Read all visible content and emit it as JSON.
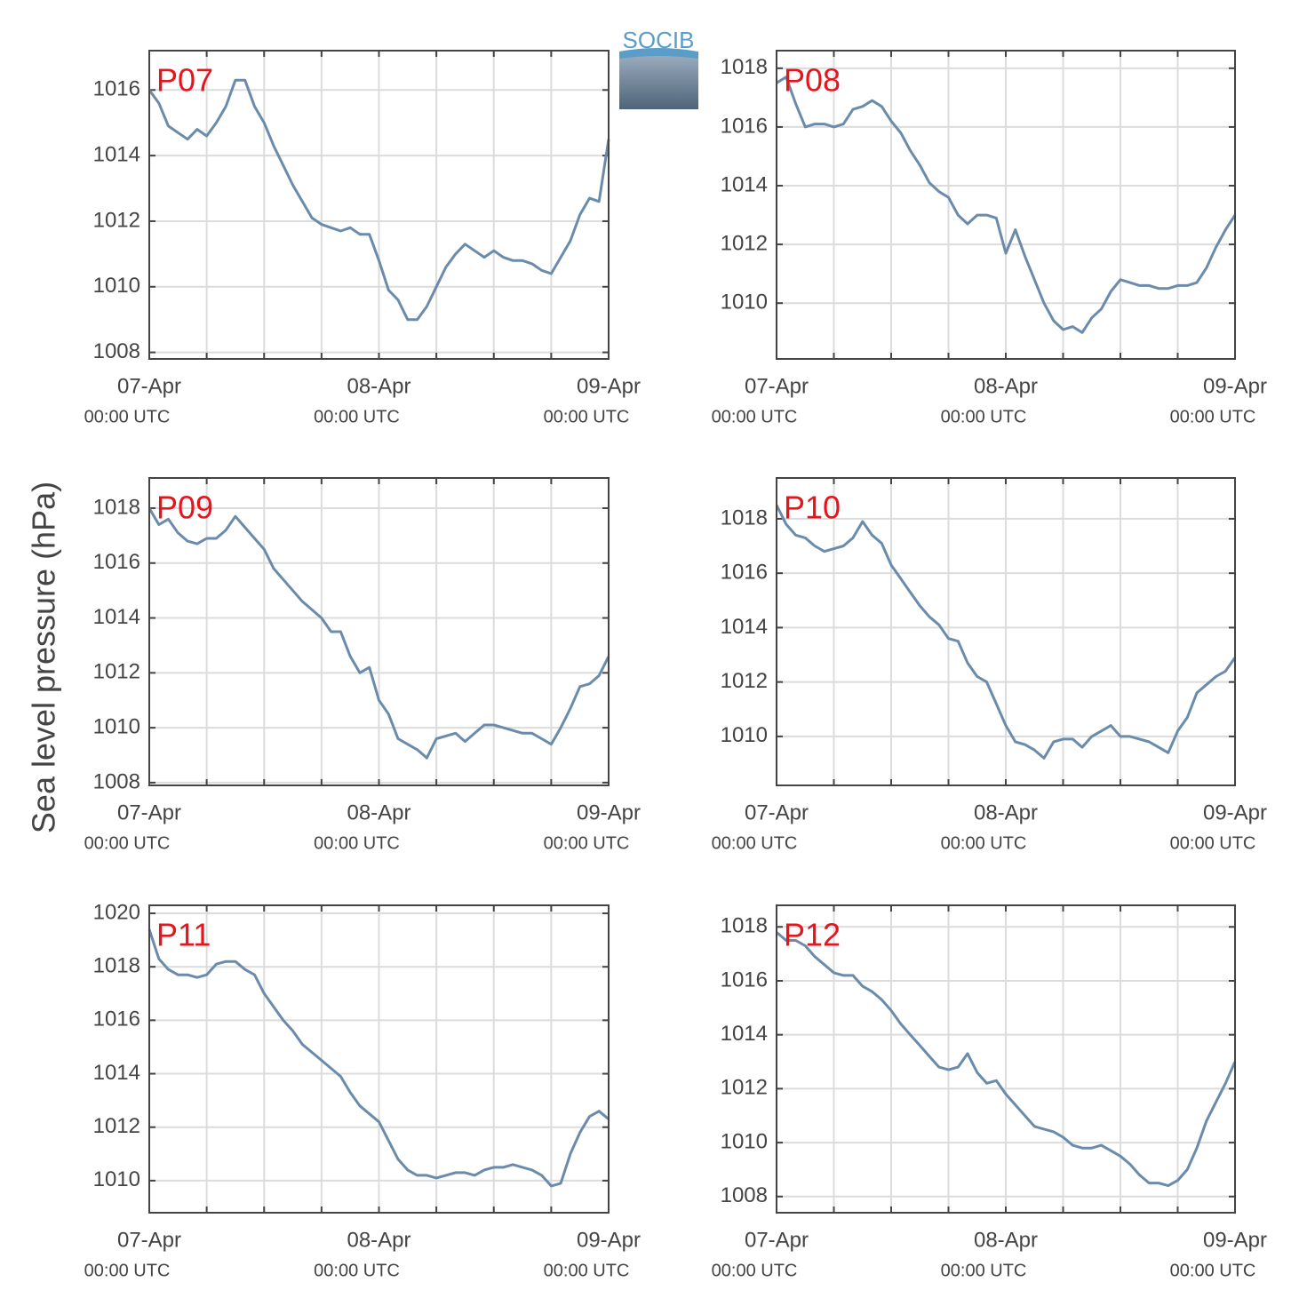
{
  "logo": "SOCIB",
  "ylabel": "Sea level pressure (hPa)",
  "chart_data": [
    {
      "type": "line",
      "title": "P07",
      "color": "#6a8bab",
      "grid": true,
      "x": [
        0,
        1,
        2,
        3,
        4,
        5,
        6,
        7,
        8,
        9,
        10,
        11,
        12,
        13,
        14,
        15,
        16,
        17,
        18,
        19,
        20,
        21,
        22,
        23,
        24,
        25,
        26,
        27,
        28,
        29,
        30,
        31,
        32,
        33,
        34,
        35,
        36,
        37,
        38,
        39,
        40,
        41,
        42,
        43,
        44,
        45,
        46,
        47,
        48
      ],
      "values": [
        1016,
        1015.6,
        1014.9,
        1014.7,
        1014.5,
        1014.8,
        1014.6,
        1015.0,
        1015.5,
        1016.3,
        1016.3,
        1015.5,
        1015.0,
        1014.3,
        1013.7,
        1013.1,
        1012.6,
        1012.1,
        1011.9,
        1011.8,
        1011.7,
        1011.8,
        1011.6,
        1011.6,
        1010.8,
        1009.9,
        1009.6,
        1009.0,
        1009.0,
        1009.4,
        1010.0,
        1010.6,
        1011.0,
        1011.3,
        1011.1,
        1010.9,
        1011.1,
        1010.9,
        1010.8,
        1010.8,
        1010.7,
        1010.5,
        1010.4,
        1010.9,
        1011.4,
        1012.2,
        1012.7,
        1012.6,
        1014.5
      ],
      "xlim": [
        0,
        48
      ],
      "xticks": [
        {
          "value": 0,
          "label": "07-Apr",
          "sublabel": "00:00 UTC"
        },
        {
          "value": 6
        },
        {
          "value": 12
        },
        {
          "value": 18
        },
        {
          "value": 24,
          "label": "08-Apr",
          "sublabel": "00:00 UTC"
        },
        {
          "value": 30
        },
        {
          "value": 36
        },
        {
          "value": 42
        },
        {
          "value": 48,
          "label": "09-Apr",
          "sublabel": "00:00 UTC"
        }
      ],
      "ylim": [
        1007.8,
        1017.2
      ],
      "yticks": [
        1008,
        1010,
        1012,
        1014,
        1016
      ]
    },
    {
      "type": "line",
      "title": "P08",
      "color": "#6a8bab",
      "grid": true,
      "x": [
        0,
        1,
        2,
        3,
        4,
        5,
        6,
        7,
        8,
        9,
        10,
        11,
        12,
        13,
        14,
        15,
        16,
        17,
        18,
        19,
        20,
        21,
        22,
        23,
        24,
        25,
        26,
        27,
        28,
        29,
        30,
        31,
        32,
        33,
        34,
        35,
        36,
        37,
        38,
        39,
        40,
        41,
        42,
        43,
        44,
        45,
        46,
        47,
        48
      ],
      "values": [
        1017.5,
        1017.7,
        1016.8,
        1016.0,
        1016.1,
        1016.1,
        1016.0,
        1016.1,
        1016.6,
        1016.7,
        1016.9,
        1016.7,
        1016.2,
        1015.8,
        1015.2,
        1014.7,
        1014.1,
        1013.8,
        1013.6,
        1013.0,
        1012.7,
        1013.0,
        1013.0,
        1012.9,
        1011.7,
        1012.5,
        1011.6,
        1010.8,
        1010.0,
        1009.4,
        1009.1,
        1009.2,
        1009.0,
        1009.5,
        1009.8,
        1010.4,
        1010.8,
        1010.7,
        1010.6,
        1010.6,
        1010.5,
        1010.5,
        1010.6,
        1010.6,
        1010.7,
        1011.2,
        1011.9,
        1012.5,
        1013.0
      ],
      "xlim": [
        0,
        48
      ],
      "xticks": [
        {
          "value": 0,
          "label": "07-Apr",
          "sublabel": "00:00 UTC"
        },
        {
          "value": 6
        },
        {
          "value": 12
        },
        {
          "value": 18
        },
        {
          "value": 24,
          "label": "08-Apr",
          "sublabel": "00:00 UTC"
        },
        {
          "value": 30
        },
        {
          "value": 36
        },
        {
          "value": 42
        },
        {
          "value": 48,
          "label": "09-Apr",
          "sublabel": "00:00 UTC"
        }
      ],
      "ylim": [
        1008.1,
        1018.6
      ],
      "yticks": [
        1010,
        1012,
        1014,
        1016,
        1018
      ]
    },
    {
      "type": "line",
      "title": "P09",
      "color": "#6a8bab",
      "grid": true,
      "x": [
        0,
        1,
        2,
        3,
        4,
        5,
        6,
        7,
        8,
        9,
        10,
        11,
        12,
        13,
        14,
        15,
        16,
        17,
        18,
        19,
        20,
        21,
        22,
        23,
        24,
        25,
        26,
        27,
        28,
        29,
        30,
        31,
        32,
        33,
        34,
        35,
        36,
        37,
        38,
        39,
        40,
        41,
        42,
        43,
        44,
        45,
        46,
        47,
        48
      ],
      "values": [
        1018.0,
        1017.4,
        1017.6,
        1017.1,
        1016.8,
        1016.7,
        1016.9,
        1016.9,
        1017.2,
        1017.7,
        1017.3,
        1016.9,
        1016.5,
        1015.8,
        1015.4,
        1015.0,
        1014.6,
        1014.3,
        1014.0,
        1013.5,
        1013.5,
        1012.6,
        1012.0,
        1012.2,
        1011.0,
        1010.5,
        1009.6,
        1009.4,
        1009.2,
        1008.9,
        1009.6,
        1009.7,
        1009.8,
        1009.5,
        1009.8,
        1010.1,
        1010.1,
        1010.0,
        1009.9,
        1009.8,
        1009.8,
        1009.6,
        1009.4,
        1010.0,
        1010.7,
        1011.5,
        1011.6,
        1011.9,
        1012.6
      ],
      "xlim": [
        0,
        48
      ],
      "xticks": [
        {
          "value": 0,
          "label": "07-Apr",
          "sublabel": "00:00 UTC"
        },
        {
          "value": 6
        },
        {
          "value": 12
        },
        {
          "value": 18
        },
        {
          "value": 24,
          "label": "08-Apr",
          "sublabel": "00:00 UTC"
        },
        {
          "value": 30
        },
        {
          "value": 36
        },
        {
          "value": 42
        },
        {
          "value": 48,
          "label": "09-Apr",
          "sublabel": "00:00 UTC"
        }
      ],
      "ylim": [
        1007.9,
        1019.1
      ],
      "yticks": [
        1008,
        1010,
        1012,
        1014,
        1016,
        1018
      ]
    },
    {
      "type": "line",
      "title": "P10",
      "color": "#6a8bab",
      "grid": true,
      "x": [
        0,
        1,
        2,
        3,
        4,
        5,
        6,
        7,
        8,
        9,
        10,
        11,
        12,
        13,
        14,
        15,
        16,
        17,
        18,
        19,
        20,
        21,
        22,
        23,
        24,
        25,
        26,
        27,
        28,
        29,
        30,
        31,
        32,
        33,
        34,
        35,
        36,
        37,
        38,
        39,
        40,
        41,
        42,
        43,
        44,
        45,
        46,
        47,
        48
      ],
      "values": [
        1018.5,
        1017.8,
        1017.4,
        1017.3,
        1017.0,
        1016.8,
        1016.9,
        1017.0,
        1017.3,
        1017.9,
        1017.4,
        1017.1,
        1016.3,
        1015.8,
        1015.3,
        1014.8,
        1014.4,
        1014.1,
        1013.6,
        1013.5,
        1012.7,
        1012.2,
        1012.0,
        1011.2,
        1010.4,
        1009.8,
        1009.7,
        1009.5,
        1009.2,
        1009.8,
        1009.9,
        1009.9,
        1009.6,
        1010.0,
        1010.2,
        1010.4,
        1010.0,
        1010.0,
        1009.9,
        1009.8,
        1009.6,
        1009.4,
        1010.2,
        1010.7,
        1011.6,
        1011.9,
        1012.2,
        1012.4,
        1012.9
      ],
      "xlim": [
        0,
        48
      ],
      "xticks": [
        {
          "value": 0,
          "label": "07-Apr",
          "sublabel": "00:00 UTC"
        },
        {
          "value": 6
        },
        {
          "value": 12
        },
        {
          "value": 18
        },
        {
          "value": 24,
          "label": "08-Apr",
          "sublabel": "00:00 UTC"
        },
        {
          "value": 30
        },
        {
          "value": 36
        },
        {
          "value": 42
        },
        {
          "value": 48,
          "label": "09-Apr",
          "sublabel": "00:00 UTC"
        }
      ],
      "ylim": [
        1008.2,
        1019.5
      ],
      "yticks": [
        1010,
        1012,
        1014,
        1016,
        1018
      ]
    },
    {
      "type": "line",
      "title": "P11",
      "color": "#6a8bab",
      "grid": true,
      "x": [
        0,
        1,
        2,
        3,
        4,
        5,
        6,
        7,
        8,
        9,
        10,
        11,
        12,
        13,
        14,
        15,
        16,
        17,
        18,
        19,
        20,
        21,
        22,
        23,
        24,
        25,
        26,
        27,
        28,
        29,
        30,
        31,
        32,
        33,
        34,
        35,
        36,
        37,
        38,
        39,
        40,
        41,
        42,
        43,
        44,
        45,
        46,
        47,
        48
      ],
      "values": [
        1019.4,
        1018.3,
        1017.9,
        1017.7,
        1017.7,
        1017.6,
        1017.7,
        1018.1,
        1018.2,
        1018.2,
        1017.9,
        1017.7,
        1017.0,
        1016.5,
        1016.0,
        1015.6,
        1015.1,
        1014.8,
        1014.5,
        1014.2,
        1013.9,
        1013.3,
        1012.8,
        1012.5,
        1012.2,
        1011.5,
        1010.8,
        1010.4,
        1010.2,
        1010.2,
        1010.1,
        1010.2,
        1010.3,
        1010.3,
        1010.2,
        1010.4,
        1010.5,
        1010.5,
        1010.6,
        1010.5,
        1010.4,
        1010.2,
        1009.8,
        1009.9,
        1011.0,
        1011.8,
        1012.4,
        1012.6,
        1012.3
      ],
      "xlim": [
        0,
        48
      ],
      "xticks": [
        {
          "value": 0,
          "label": "07-Apr",
          "sublabel": "00:00 UTC"
        },
        {
          "value": 6
        },
        {
          "value": 12
        },
        {
          "value": 18
        },
        {
          "value": 24,
          "label": "08-Apr",
          "sublabel": "00:00 UTC"
        },
        {
          "value": 30
        },
        {
          "value": 36
        },
        {
          "value": 42
        },
        {
          "value": 48,
          "label": "09-Apr",
          "sublabel": "00:00 UTC"
        }
      ],
      "ylim": [
        1008.8,
        1020.3
      ],
      "yticks": [
        1010,
        1012,
        1014,
        1016,
        1018,
        1020
      ]
    },
    {
      "type": "line",
      "title": "P12",
      "color": "#6a8bab",
      "grid": true,
      "x": [
        0,
        1,
        2,
        3,
        4,
        5,
        6,
        7,
        8,
        9,
        10,
        11,
        12,
        13,
        14,
        15,
        16,
        17,
        18,
        19,
        20,
        21,
        22,
        23,
        24,
        25,
        26,
        27,
        28,
        29,
        30,
        31,
        32,
        33,
        34,
        35,
        36,
        37,
        38,
        39,
        40,
        41,
        42,
        43,
        44,
        45,
        46,
        47,
        48
      ],
      "values": [
        1017.8,
        1017.5,
        1017.5,
        1017.3,
        1016.9,
        1016.6,
        1016.3,
        1016.2,
        1016.2,
        1015.8,
        1015.6,
        1015.3,
        1014.9,
        1014.4,
        1014.0,
        1013.6,
        1013.2,
        1012.8,
        1012.7,
        1012.8,
        1013.3,
        1012.6,
        1012.2,
        1012.3,
        1011.8,
        1011.4,
        1011.0,
        1010.6,
        1010.5,
        1010.4,
        1010.2,
        1009.9,
        1009.8,
        1009.8,
        1009.9,
        1009.7,
        1009.5,
        1009.2,
        1008.8,
        1008.5,
        1008.5,
        1008.4,
        1008.6,
        1009.0,
        1009.8,
        1010.8,
        1011.5,
        1012.2,
        1013.0
      ],
      "xlim": [
        0,
        48
      ],
      "xticks": [
        {
          "value": 0,
          "label": "07-Apr",
          "sublabel": "00:00 UTC"
        },
        {
          "value": 6
        },
        {
          "value": 12
        },
        {
          "value": 18
        },
        {
          "value": 24,
          "label": "08-Apr",
          "sublabel": "00:00 UTC"
        },
        {
          "value": 30
        },
        {
          "value": 36
        },
        {
          "value": 42
        },
        {
          "value": 48,
          "label": "09-Apr",
          "sublabel": "00:00 UTC"
        }
      ],
      "ylim": [
        1007.4,
        1018.8
      ],
      "yticks": [
        1008,
        1010,
        1012,
        1014,
        1016,
        1018
      ]
    }
  ]
}
